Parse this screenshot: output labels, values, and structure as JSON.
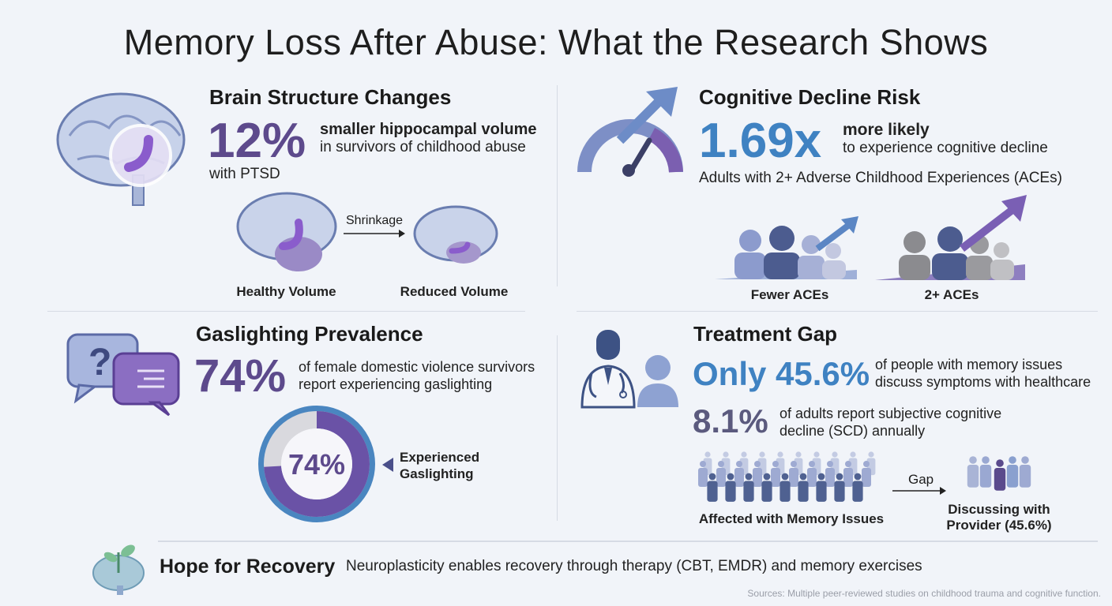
{
  "title": "Memory Loss After Abuse: What the Research Shows",
  "brain": {
    "heading": "Brain Structure Changes",
    "stat": "12%",
    "stat_text_bold": "smaller hippocampal volume",
    "stat_text": "in survivors of childhood abuse",
    "stat_text2": "with PTSD",
    "arrow_label": "Shrinkage",
    "healthy_label": "Healthy Volume",
    "reduced_label": "Reduced Volume"
  },
  "cognitive": {
    "heading": "Cognitive Decline Risk",
    "stat": "1.69x",
    "stat_text_bold": "more likely",
    "stat_text": "to experience cognitive decline",
    "subtext": "Adults with 2+ Adverse Childhood Experiences (ACEs)",
    "group1_label": "Fewer ACEs",
    "group2_label": "2+ ACEs"
  },
  "gaslighting": {
    "heading": "Gaslighting Prevalence",
    "stat": "74%",
    "stat_text": "of female domestic violence survivors",
    "stat_text2": "report experiencing gaslighting",
    "donut_value": 74,
    "donut_label": "74%",
    "legend_line1": "Experienced",
    "legend_line2": "Gaslighting"
  },
  "treatment": {
    "heading": "Treatment Gap",
    "stat": "Only 45.6%",
    "stat_text": "of people with memory issues",
    "stat_text2": "discuss symptoms with healthcare",
    "stat2": "8.1%",
    "stat2_text": "of adults report subjective cognitive",
    "stat2_text2": "decline (SCD) annually",
    "affected_label": "Affected with Memory Issues",
    "gap_label": "Gap",
    "discussing_line1": "Discussing with",
    "discussing_line2": "Provider (45.6%)"
  },
  "footer": {
    "heading": "Hope for Recovery",
    "text": "Neuroplasticity enables recovery through therapy (CBT, EMDR) and memory exercises",
    "sources": "Sources: Multiple peer-reviewed studies on childhood trauma and cognitive function."
  },
  "colors": {
    "purple": "#5d4a8c",
    "blue": "#3f82c2",
    "slate": "#5b5a7e"
  }
}
